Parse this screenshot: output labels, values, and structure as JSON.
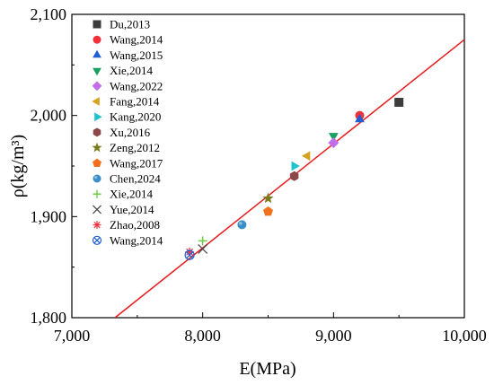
{
  "chart_data": {
    "type": "scatter",
    "xlabel": "E(MPa)",
    "ylabel": "ρ(kg/m³)",
    "xlim": [
      7000,
      10000
    ],
    "ylim": [
      1800,
      2100
    ],
    "xticks": [
      7000,
      8000,
      9000,
      10000
    ],
    "xtick_labels": [
      "7,000",
      "8,000",
      "9,000",
      "10,000"
    ],
    "yticks": [
      1800,
      1900,
      2000,
      2100
    ],
    "ytick_labels": [
      "1,800",
      "1,900",
      "2,000",
      "2,100"
    ],
    "grid": false,
    "legend_position": "top-left",
    "fit_line": {
      "color": "#e8191c",
      "points": [
        [
          7330,
          1800
        ],
        [
          10000,
          2075
        ]
      ]
    },
    "series": [
      {
        "name": "Du,2013",
        "marker": "square",
        "color": "#3c3c3c",
        "points": [
          [
            9500,
            2013
          ]
        ]
      },
      {
        "name": "Wang,2014",
        "marker": "circle",
        "color": "#f0303a",
        "points": [
          [
            9200,
            2000
          ]
        ]
      },
      {
        "name": "Wang,2015",
        "marker": "triangle-up",
        "color": "#1f5fd6",
        "points": [
          [
            9200,
            1996
          ]
        ]
      },
      {
        "name": "Xie,2014",
        "marker": "triangle-down",
        "color": "#18a060",
        "points": [
          [
            9000,
            1980
          ]
        ]
      },
      {
        "name": "Wang,2022",
        "marker": "diamond",
        "color": "#c36ee8",
        "points": [
          [
            9000,
            1973
          ]
        ]
      },
      {
        "name": "Fang,2014",
        "marker": "triangle-left",
        "color": "#d7a21e",
        "points": [
          [
            8800,
            1960
          ]
        ]
      },
      {
        "name": "Kang,2020",
        "marker": "triangle-right",
        "color": "#1ec3cc",
        "points": [
          [
            8700,
            1950
          ]
        ]
      },
      {
        "name": "Xu,2016",
        "marker": "hexagon",
        "color": "#8c4848",
        "points": [
          [
            8700,
            1940
          ]
        ]
      },
      {
        "name": "Zeng,2012",
        "marker": "star",
        "color": "#7a7a1f",
        "points": [
          [
            8500,
            1918
          ]
        ]
      },
      {
        "name": "Wang,2017",
        "marker": "pentagon",
        "color": "#f0701e",
        "points": [
          [
            8500,
            1905
          ]
        ]
      },
      {
        "name": "Chen,2024",
        "marker": "ball",
        "color": "#3a8fc8",
        "points": [
          [
            8300,
            1892
          ]
        ]
      },
      {
        "name": "Xie,2014",
        "marker": "plus",
        "color": "#66cc3a",
        "points": [
          [
            8000,
            1876
          ]
        ]
      },
      {
        "name": "Yue,2014",
        "marker": "x",
        "color": "#444444",
        "points": [
          [
            8000,
            1868
          ]
        ]
      },
      {
        "name": "Zhao,2008",
        "marker": "asterisk",
        "color": "#f0303a",
        "points": [
          [
            7900,
            1865
          ]
        ]
      },
      {
        "name": "Wang,2014",
        "marker": "circle-x",
        "color": "#1f5fd6",
        "points": [
          [
            7900,
            1862
          ]
        ]
      }
    ]
  }
}
